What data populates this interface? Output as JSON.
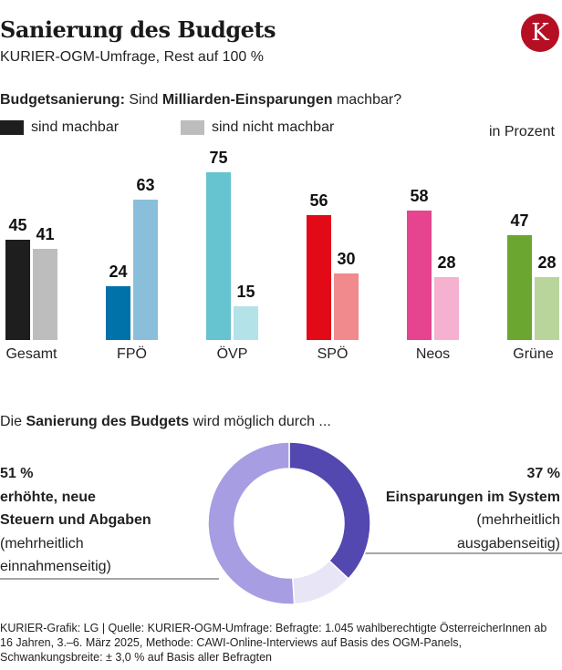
{
  "header": {
    "title": "Sanierung des Budgets",
    "subtitle": "KURIER-OGM-Umfrage, Rest auf 100 %",
    "logo_letter": "K",
    "logo_color": "#b50f24"
  },
  "question": {
    "part1_bold": "Budgetsanierung:",
    "part2": " Sind ",
    "part3_bold": "Milliarden-Einsparungen",
    "part4": " machbar?"
  },
  "legend": [
    {
      "label": "sind machbar",
      "color": "#1e1e1e"
    },
    {
      "label": "sind nicht machbar",
      "color": "#bdbdbd"
    }
  ],
  "unit_label": "in Prozent",
  "chart_data": [
    {
      "type": "bar",
      "title": "Budgetsanierung: Sind Milliarden-Einsparungen machbar?",
      "xlabel": "",
      "ylabel": "in Prozent",
      "ylim": [
        0,
        80
      ],
      "categories": [
        "Gesamt",
        "FPÖ",
        "ÖVP",
        "SPÖ",
        "Neos",
        "Grüne"
      ],
      "series": [
        {
          "name": "sind machbar",
          "values": [
            45,
            24,
            75,
            56,
            58,
            47
          ],
          "colors": [
            "#1e1e1e",
            "#0072aa",
            "#66c3d0",
            "#e20a17",
            "#e6448f",
            "#6ba631"
          ]
        },
        {
          "name": "sind nicht machbar",
          "values": [
            41,
            63,
            15,
            30,
            28,
            28
          ],
          "colors": [
            "#bdbdbd",
            "#8abfdb",
            "#b3e2e8",
            "#f08a8d",
            "#f6b0d0",
            "#b9d59c"
          ]
        }
      ],
      "legend": "top-left",
      "grid": false
    },
    {
      "type": "pie",
      "title": "Die Sanierung des Budgets wird möglich durch ...",
      "variant": "donut",
      "slices": [
        {
          "label": "Einsparungen im System (mehrheitlich ausgabenseitig)",
          "value": 37,
          "color": "#5248b0"
        },
        {
          "label": "Rest",
          "value": 12,
          "color": "#e8e5f7"
        },
        {
          "label": "erhöhte, neue Steuern und Abgaben (mehrheitlich einnahmenseitig)",
          "value": 51,
          "color": "#a79de3"
        }
      ]
    }
  ],
  "section2": {
    "part1": "Die ",
    "part2_bold": "Sanierung des Budgets",
    "part3": " wird möglich durch ..."
  },
  "left_annotation": {
    "pct": "51 %",
    "line1": "erhöhte, neue",
    "line2": "Steuern und Abgaben",
    "line3": "(mehrheitlich",
    "line4": "einnahmenseitig)"
  },
  "right_annotation": {
    "pct": "37 %",
    "line1": "Einsparungen im System",
    "line2": "(mehrheitlich",
    "line3": "ausgabenseitig)"
  },
  "footer": {
    "line1": "KURIER-Grafik: LG | Quelle: KURIER-OGM-Umfrage: Befragte: 1.045 wahlberechtigte ÖsterreicherInnen ab",
    "line2": "16 Jahren, 3.–6. März 2025, Methode: CAWI-Online-Interviews auf Basis des OGM-Panels,",
    "line3": "Schwankungsbreite: ± 3,0 % auf Basis aller Befragten"
  }
}
